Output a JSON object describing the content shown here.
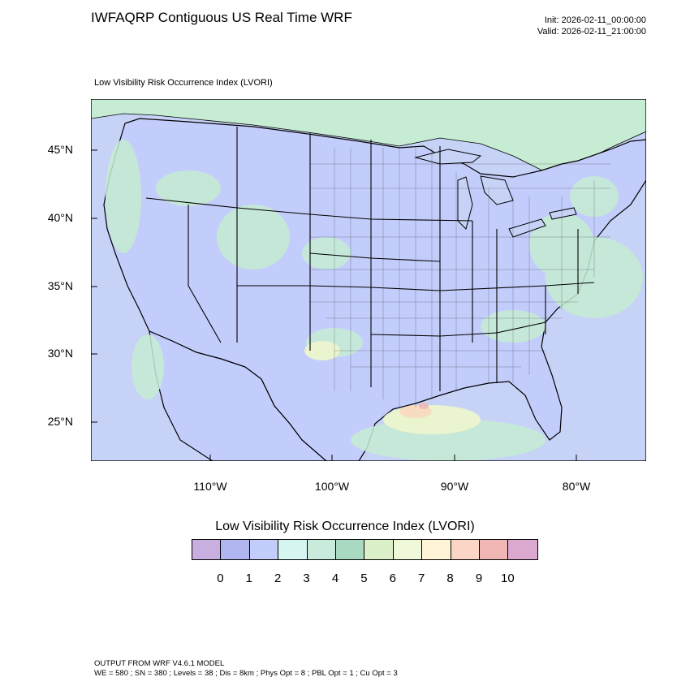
{
  "header": {
    "title": "IWFAQRP Contiguous US Real Time WRF",
    "init": "Init: 2026-02-11_00:00:00",
    "valid": "Valid: 2026-02-11_21:00:00",
    "subtitle": "Low Visibility Risk Occurrence Index   (LVORI)"
  },
  "map": {
    "lat_labels": [
      "45°N",
      "40°N",
      "35°N",
      "30°N",
      "25°N"
    ],
    "lon_labels": [
      "110°W",
      "100°W",
      "90°W",
      "80°W"
    ],
    "colors": {
      "ocean": "#c7d2f7",
      "land_low": "#c3cdfb",
      "land_green": "#c6ecd3",
      "land_yellow": "#eaf4cf",
      "land_orange": "#f7dcc0",
      "land_red": "#ecbcbc",
      "border": "#000000"
    }
  },
  "legend": {
    "title": "Low Visibility Risk Occurrence Index  (LVORI)",
    "ticks": [
      "0",
      "1",
      "2",
      "3",
      "4",
      "5",
      "6",
      "7",
      "8",
      "9",
      "10"
    ],
    "colors": [
      "#c9aee0",
      "#b2b6f0",
      "#c3cdfb",
      "#d7f6f1",
      "#c8ebdc",
      "#a9d9c1",
      "#dbefc9",
      "#eff8d8",
      "#fff4d8",
      "#fbd6c6",
      "#efb6b3",
      "#dba8cf"
    ]
  },
  "footer": {
    "line1": "OUTPUT FROM WRF V4.6.1 MODEL",
    "line2": "WE = 580 ; SN = 380 ; Levels = 38 ; Dis = 8km ; Phys Opt = 8 ; PBL Opt = 1 ; Cu Opt = 3"
  }
}
